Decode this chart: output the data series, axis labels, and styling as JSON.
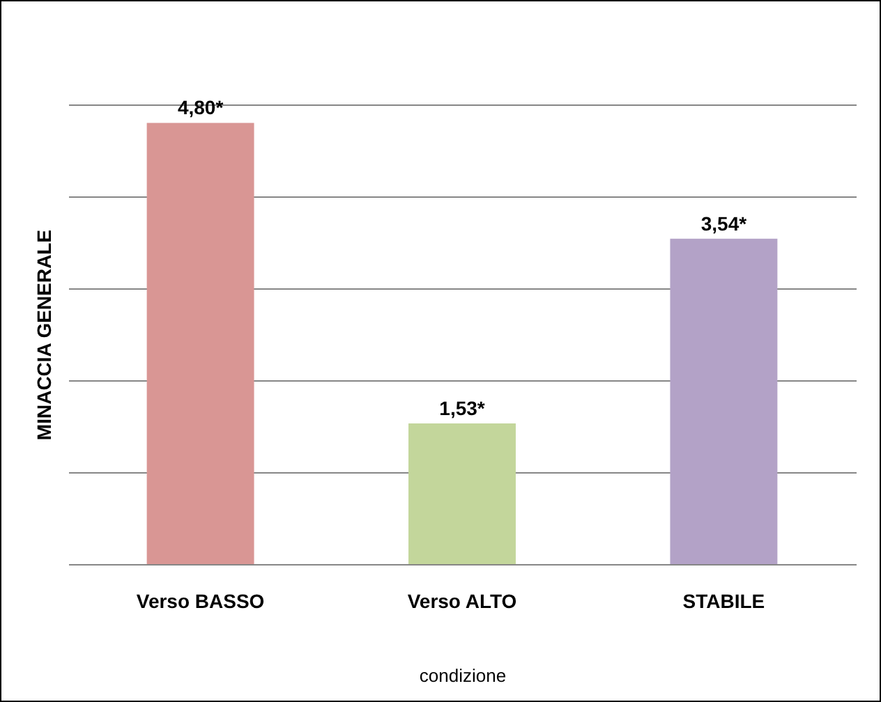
{
  "chart_data": {
    "type": "bar",
    "xlabel": "condizione",
    "ylabel": "MINACCIA GENERALE",
    "categories": [
      "Verso BASSO",
      "Verso ALTO",
      "STABILE"
    ],
    "values": [
      4.8,
      1.53,
      3.54
    ],
    "colors": [
      "#d99694",
      "#c3d69b",
      "#b3a2c7"
    ],
    "value_labels": [
      "4,80*",
      "1,53*",
      "3,54*"
    ],
    "ylim": [
      0,
      5
    ],
    "yticks": [
      {
        "value": 0,
        "label": null
      },
      {
        "value": 1,
        "label": null
      },
      {
        "value": 2,
        "label": null
      },
      {
        "value": 3,
        "label": null
      },
      {
        "value": 4,
        "label": null
      },
      {
        "value": 5,
        "label": null
      }
    ],
    "grid": "y"
  }
}
